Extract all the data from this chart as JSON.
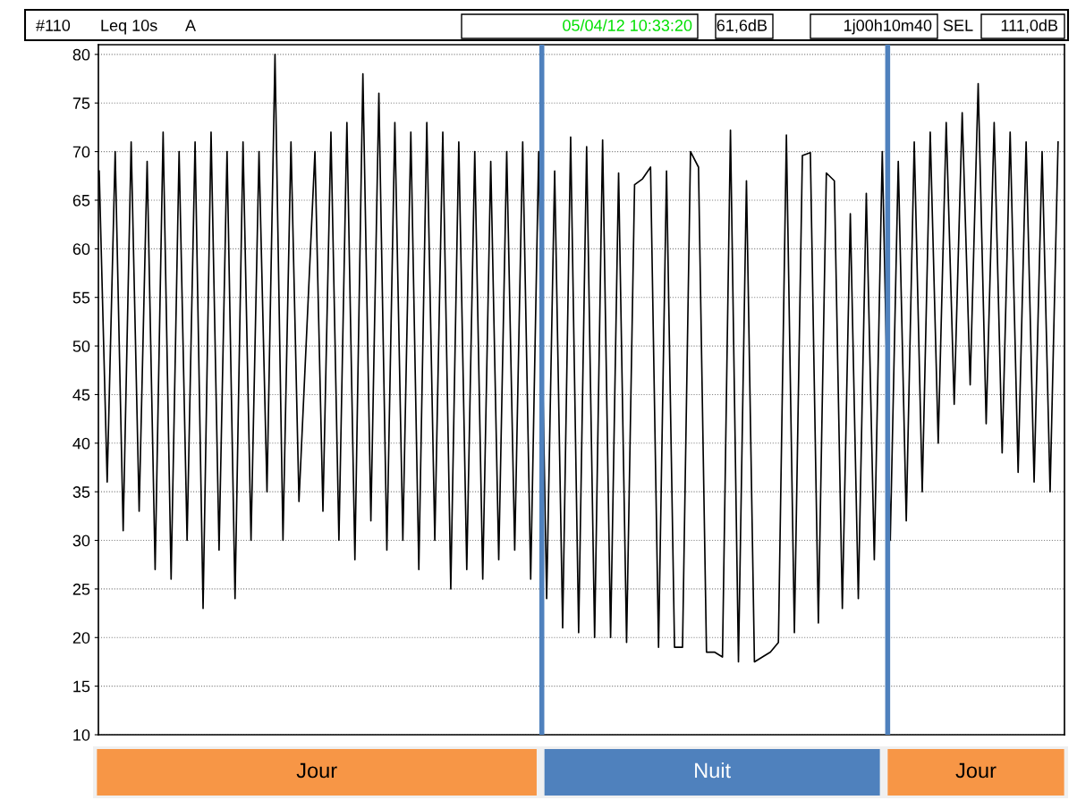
{
  "chart_data": {
    "type": "line",
    "title": "#110",
    "annotations": [
      "Leq 10s",
      "A",
      "05/04/12 10:33:20",
      "61,6dB",
      "1j00h10m40",
      "SEL",
      "111,0dB",
      "Jour",
      "Nuit",
      "Jour"
    ],
    "categories": [
      null,
      null,
      null,
      null,
      null,
      null,
      null,
      null,
      null,
      null,
      null,
      null,
      null,
      null,
      null,
      null,
      null,
      null,
      null,
      null,
      null,
      null,
      null,
      null,
      null,
      null,
      null,
      null,
      null,
      null,
      null,
      null,
      null,
      null,
      null,
      null,
      null,
      null,
      null,
      null,
      null,
      null,
      null,
      null,
      null,
      null,
      null,
      null,
      null,
      null,
      null,
      null,
      null,
      null,
      null,
      null,
      null,
      null,
      null,
      null,
      null,
      null,
      null,
      null,
      null,
      null,
      null,
      null,
      null,
      null,
      null,
      null,
      null,
      null,
      null,
      null,
      null,
      null,
      null,
      null,
      null,
      null,
      null,
      null,
      null,
      null,
      null,
      null,
      null,
      null,
      null,
      null,
      null,
      null,
      null,
      null,
      null,
      null,
      null,
      null,
      null,
      null,
      null,
      null,
      null,
      null,
      null,
      null,
      null,
      null,
      null,
      null,
      null,
      null,
      null,
      null,
      null,
      null,
      null,
      null,
      null
    ],
    "series": [
      {
        "color": "#000000",
        "values": [
          68,
          36,
          70,
          31,
          71,
          33,
          69,
          27,
          72,
          26,
          70,
          30,
          71,
          23,
          72,
          29,
          70,
          24,
          71,
          30,
          70,
          35,
          80,
          30,
          71,
          34,
          52,
          70,
          33,
          72,
          30,
          73,
          28,
          78,
          32,
          76,
          29,
          73,
          30,
          72,
          27,
          73,
          30,
          72,
          25,
          71,
          27,
          70,
          26,
          69,
          28,
          70,
          29,
          71,
          26,
          70,
          24,
          68,
          21,
          71.5,
          20.5,
          70.5,
          20,
          71.2,
          20,
          67.8,
          19.5,
          66.6,
          67.2,
          68.4,
          19,
          68,
          19,
          19,
          70,
          68.4,
          18.5,
          18.5,
          18,
          72.2,
          17.5,
          67,
          17.5,
          18,
          18.5,
          19.5,
          71.7,
          20.5,
          69.6,
          69.9,
          21.5,
          67.8,
          67,
          23,
          63.6,
          24,
          65.7,
          28,
          70,
          30,
          69,
          32,
          71,
          35,
          72,
          40,
          73,
          44,
          74,
          46,
          77,
          42,
          73,
          39,
          72,
          37,
          71,
          36,
          70,
          35,
          71
        ]
      }
    ],
    "ylim": [
      10,
      81
    ],
    "yticks": [
      10,
      15,
      20,
      25,
      30,
      35,
      40,
      45,
      50,
      55,
      60,
      65,
      70,
      75,
      80
    ],
    "tick_labels": "y",
    "grid": "y",
    "marker": "none",
    "line_style": "solid"
  }
}
